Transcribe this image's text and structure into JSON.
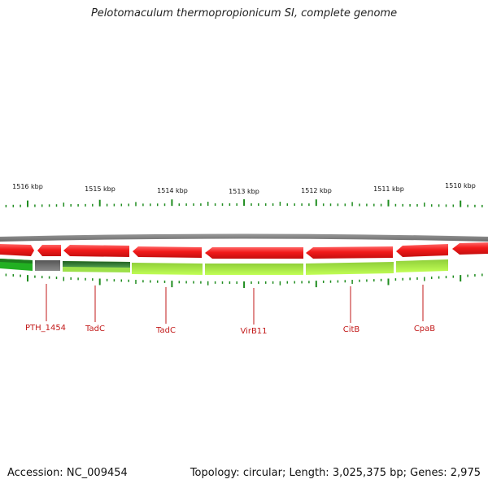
{
  "title": "Pelotomaculum thermopropionicum SI, complete genome",
  "footer": {
    "accession_label": "Accession:",
    "accession": "NC_009454",
    "topology_label": "Topology:",
    "topology": "circular",
    "length_label": "Length:",
    "length": "3,025,375 bp",
    "genes_label": "Genes:",
    "genes": "2,975"
  },
  "scale": {
    "ticks": [
      {
        "label": "1516 kbp",
        "kbp": 1516
      },
      {
        "label": "1515 kbp",
        "kbp": 1515
      },
      {
        "label": "1514 kbp",
        "kbp": 1514
      },
      {
        "label": "1513 kbp",
        "kbp": 1513
      },
      {
        "label": "1512 kbp",
        "kbp": 1512
      },
      {
        "label": "1511 kbp",
        "kbp": 1511
      },
      {
        "label": "1510 kbp",
        "kbp": 1510
      }
    ]
  },
  "gene_labels": [
    {
      "label": "PTH_1454"
    },
    {
      "label": "TadC"
    },
    {
      "label": "TadC"
    },
    {
      "label": "VirB11"
    },
    {
      "label": "CitB"
    },
    {
      "label": "CpaB"
    }
  ],
  "colors": {
    "cds_forward": "#ee1c1c",
    "cds_highlight": "#ff5a5a",
    "backbone": "#7f7f7f",
    "cog_dark_green": "#2f7a2f",
    "cog_bright_green": "#18b418",
    "cog_light_green": "#a6e84a",
    "cog_gray": "#6f6f6f",
    "tick": "#1e8c1e",
    "label_red": "#c21a1a"
  }
}
